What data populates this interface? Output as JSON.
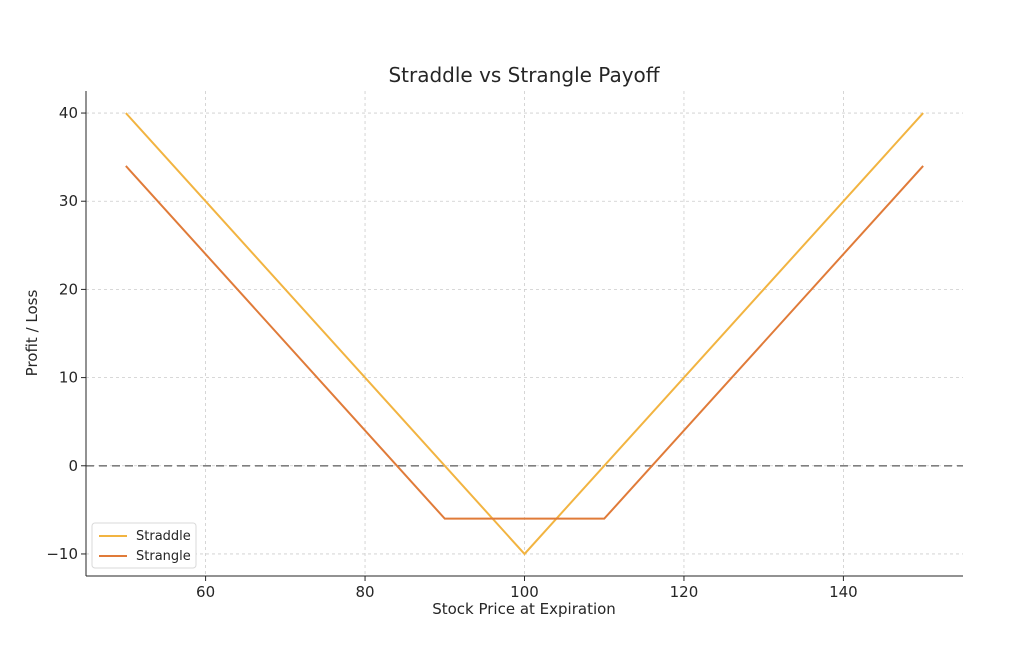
{
  "chart_data": {
    "type": "line",
    "title": "Straddle vs Strangle Payoff",
    "xlabel": "Stock Price at Expiration",
    "ylabel": "Profit / Loss",
    "xlim": [
      45,
      155
    ],
    "ylim": [
      -12.5,
      42.5
    ],
    "xticks": [
      60,
      80,
      100,
      120,
      140
    ],
    "yticks": [
      -10,
      0,
      10,
      20,
      30,
      40
    ],
    "ytick_labels": [
      "−10",
      "0",
      "10",
      "20",
      "30",
      "40"
    ],
    "grid": true,
    "zero_line": 0,
    "legend_position": "lower-left",
    "series": [
      {
        "name": "Straddle",
        "color": "#F2B441",
        "x": [
          50,
          100,
          150
        ],
        "y": [
          40,
          -10,
          40
        ]
      },
      {
        "name": "Strangle",
        "color": "#E07B39",
        "x": [
          50,
          90,
          110,
          150
        ],
        "y": [
          34,
          -6,
          -6,
          34
        ]
      }
    ]
  }
}
